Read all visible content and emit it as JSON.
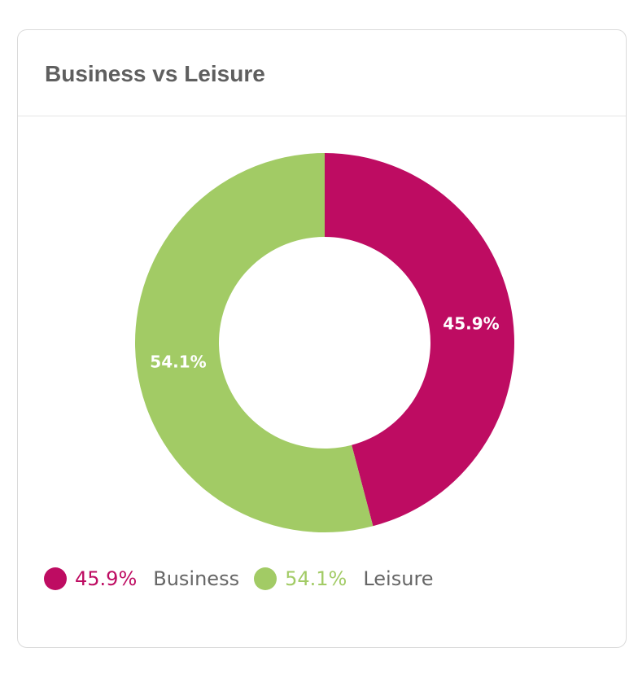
{
  "card": {
    "title": "Business vs Leisure"
  },
  "colors": {
    "business": "#be0c62",
    "leisure": "#a2cb65"
  },
  "chart_data": {
    "type": "pie",
    "donut": true,
    "title": "Business vs Leisure",
    "slices": [
      {
        "name": "Business",
        "value": 45.9,
        "label": "45.9%",
        "color": "#be0c62"
      },
      {
        "name": "Leisure",
        "value": 54.1,
        "label": "54.1%",
        "color": "#a2cb65"
      }
    ],
    "legend_position": "bottom-left"
  },
  "legend": [
    {
      "value": "45.9%",
      "name": "Business"
    },
    {
      "value": "54.1%",
      "name": "Leisure"
    }
  ]
}
